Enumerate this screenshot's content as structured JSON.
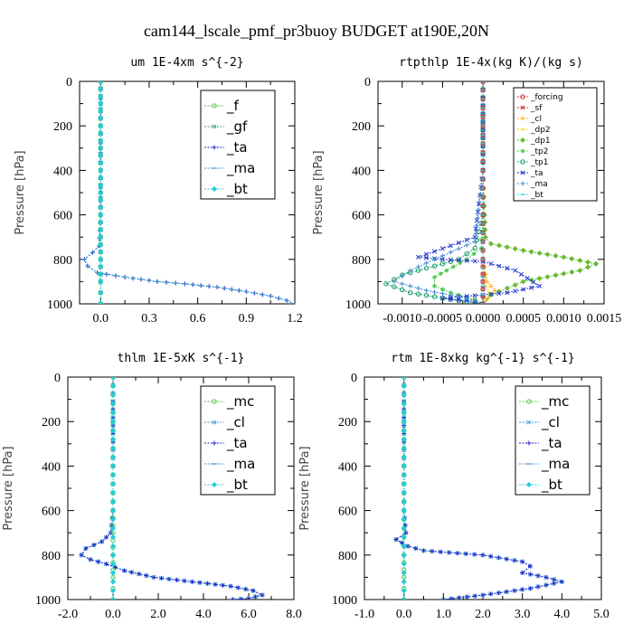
{
  "figure": {
    "title": "cam144_lscale_pmf_pr3buoy  BUDGET at190E,20N"
  },
  "chart_data": [
    {
      "type": "line",
      "title": "um   1E-4xm s^{-2}",
      "ylabel": "Pressure [hPa]",
      "ylim": [
        1000,
        0
      ],
      "xlim": [
        -0.13,
        1.2
      ],
      "xticks": [
        0,
        0.3,
        0.6,
        0.9,
        1.2
      ],
      "xtick_labels": [
        "0.0",
        "0.3",
        "0.6",
        "0.9",
        "1.2"
      ],
      "yticks": [
        0,
        200,
        400,
        600,
        800,
        1000
      ],
      "legend": "top-right",
      "series": [
        {
          "name": "_f",
          "color": "#55cc44",
          "x": [
            0,
            0,
            0,
            0,
            0,
            0,
            0,
            0,
            0,
            0,
            0,
            0
          ],
          "y": [
            0,
            100,
            200,
            300,
            400,
            500,
            600,
            700,
            800,
            900,
            950,
            1000
          ]
        },
        {
          "name": "_gf",
          "color": "#339966",
          "x": [
            0,
            0,
            0,
            0,
            0,
            0,
            0,
            0,
            0,
            0,
            0,
            0
          ],
          "y": [
            0,
            100,
            200,
            300,
            400,
            500,
            600,
            700,
            800,
            900,
            950,
            1000
          ]
        },
        {
          "name": "_ta",
          "color": "#2222cc",
          "x": [
            0,
            0,
            0,
            0,
            -0.01,
            -0.05,
            -0.1,
            -0.08,
            -0.02,
            0.15,
            0.35,
            0.52,
            0.72,
            0.9,
            1.05,
            1.15,
            1.2
          ],
          "y": [
            0,
            200,
            400,
            600,
            740,
            770,
            800,
            830,
            860,
            880,
            900,
            910,
            925,
            945,
            965,
            985,
            1000
          ]
        },
        {
          "name": "_ma",
          "color": "#3399cc",
          "x": [
            0,
            0,
            0,
            0,
            -0.01,
            -0.05,
            -0.1,
            -0.08,
            -0.02,
            0.15,
            0.35,
            0.52,
            0.72,
            0.9,
            1.05,
            1.15,
            1.2
          ],
          "y": [
            0,
            200,
            400,
            600,
            740,
            770,
            800,
            830,
            860,
            880,
            900,
            910,
            925,
            945,
            965,
            985,
            1000
          ]
        },
        {
          "name": "_bt",
          "color": "#22ccdd",
          "x": [
            0,
            0,
            0,
            0,
            0,
            0,
            0,
            0,
            0,
            0,
            0,
            0
          ],
          "y": [
            0,
            100,
            200,
            300,
            400,
            500,
            600,
            700,
            800,
            900,
            950,
            1000
          ]
        }
      ]
    },
    {
      "type": "line",
      "title": "rtpthlp   1E-4x(kg K)/(kg s)",
      "ylabel": "Pressure [hPa]",
      "ylim": [
        1000,
        0
      ],
      "xlim": [
        -0.0013,
        0.0015
      ],
      "xticks": [
        -0.001,
        -0.0005,
        0,
        0.0005,
        0.001,
        0.0015
      ],
      "xtick_labels": [
        "-0.0010",
        "-0.0005",
        "0.0000",
        "0.0005",
        "0.0010",
        "0.0015"
      ],
      "yticks": [
        0,
        200,
        400,
        600,
        800,
        1000
      ],
      "legend": "top-right",
      "series": [
        {
          "name": "_forcing",
          "color": "#dd2222",
          "x": [
            0,
            0,
            0,
            0,
            0,
            0,
            0
          ],
          "y": [
            0,
            200,
            400,
            600,
            800,
            900,
            1000
          ]
        },
        {
          "name": "_sf",
          "color": "#cc3333",
          "x": [
            0,
            0,
            0,
            0,
            0,
            0,
            0
          ],
          "y": [
            0,
            200,
            400,
            600,
            800,
            900,
            1000
          ]
        },
        {
          "name": "_cl",
          "color": "#ffaa00",
          "x": [
            0,
            0,
            0,
            0,
            0,
            5e-05,
            0.0001,
            0.00015,
            0.0001,
            5e-05,
            0
          ],
          "y": [
            0,
            200,
            400,
            600,
            800,
            900,
            920,
            940,
            960,
            980,
            1000
          ]
        },
        {
          "name": "_dp2",
          "color": "#eecc00",
          "x": [
            0,
            0,
            0,
            0,
            0,
            3e-05,
            8e-05,
            5e-05,
            0
          ],
          "y": [
            0,
            200,
            400,
            600,
            800,
            920,
            950,
            975,
            1000
          ]
        },
        {
          "name": "_dp1",
          "color": "#66bb33",
          "x": [
            0,
            0,
            2e-05,
            3e-05,
            0.0001,
            0.0005,
            0.001,
            0.0014,
            0.0012,
            0.0005,
            0.0001,
            0
          ],
          "y": [
            0,
            400,
            600,
            700,
            730,
            760,
            790,
            820,
            850,
            900,
            960,
            1000
          ]
        },
        {
          "name": "_tp2",
          "color": "#44cc44",
          "x": [
            0,
            0,
            0,
            -2e-05,
            -0.0002,
            -0.00045,
            -0.0006,
            -0.0006,
            -0.0004,
            -0.0001,
            0
          ],
          "y": [
            0,
            400,
            600,
            750,
            800,
            850,
            880,
            920,
            950,
            980,
            1000
          ]
        },
        {
          "name": "_tp1",
          "color": "#119966",
          "x": [
            0,
            0,
            0,
            -0.0001,
            -0.0003,
            -0.0007,
            -0.001,
            -0.0012,
            -0.0009,
            -0.0004,
            0
          ],
          "y": [
            0,
            400,
            600,
            750,
            800,
            840,
            870,
            910,
            950,
            980,
            1000
          ]
        },
        {
          "name": "_ta",
          "color": "#2233cc",
          "x": [
            0,
            0,
            -0.0001,
            -0.0008,
            -0.0005,
            0,
            0.0004,
            0.0007,
            0.0003,
            -0.0005,
            -0.0001,
            0
          ],
          "y": [
            0,
            400,
            700,
            790,
            800,
            810,
            850,
            920,
            950,
            975,
            990,
            1000
          ]
        },
        {
          "name": "_ma",
          "color": "#4488cc",
          "x": [
            0,
            0,
            -0.0001,
            -0.0006,
            -0.0009,
            -0.0011,
            -0.0007,
            -0.0002,
            0
          ],
          "y": [
            0,
            400,
            720,
            800,
            850,
            900,
            940,
            975,
            1000
          ]
        },
        {
          "name": "_bt",
          "color": "#22ccdd",
          "x": [
            0,
            0,
            0,
            0,
            0,
            0
          ],
          "y": [
            0,
            200,
            400,
            600,
            800,
            1000
          ]
        }
      ]
    },
    {
      "type": "line",
      "title": "thlm   1E-5xK s^{-1}",
      "ylabel": "Pressure [hPa]",
      "ylim": [
        1000,
        0
      ],
      "xlim": [
        -2.0,
        8.0
      ],
      "xticks": [
        -2,
        0,
        2,
        4,
        6,
        8
      ],
      "xtick_labels": [
        "-2.0",
        "0.0",
        "2.0",
        "4.0",
        "6.0",
        "8.0"
      ],
      "yticks": [
        0,
        200,
        400,
        600,
        800,
        1000
      ],
      "legend": "top-right",
      "series": [
        {
          "name": "_mc",
          "color": "#55cc44",
          "x": [
            0,
            0,
            0,
            0,
            0,
            0,
            0,
            0,
            0
          ],
          "y": [
            0,
            200,
            400,
            600,
            700,
            800,
            900,
            950,
            1000
          ]
        },
        {
          "name": "_cl",
          "color": "#3399cc",
          "x": [
            0,
            0,
            0,
            -0.1,
            -0.5,
            -1.2,
            -1.4,
            -1.0,
            -0.3,
            0.5,
            1.8,
            3.5,
            5.2,
            6.2,
            6.6,
            6.0,
            5.3
          ],
          "y": [
            0,
            400,
            600,
            700,
            740,
            770,
            800,
            820,
            840,
            870,
            900,
            920,
            940,
            960,
            980,
            995,
            1000
          ]
        },
        {
          "name": "_ta",
          "color": "#2222cc",
          "x": [
            0,
            0,
            0,
            -0.1,
            -0.5,
            -1.2,
            -1.4,
            -1.0,
            -0.3,
            0.5,
            1.8,
            3.5,
            5.2,
            6.2,
            6.6,
            6.0,
            5.3
          ],
          "y": [
            0,
            400,
            600,
            700,
            740,
            770,
            800,
            820,
            840,
            870,
            900,
            920,
            940,
            960,
            980,
            995,
            1000
          ]
        },
        {
          "name": "_ma",
          "color": "#4488cc",
          "x": [
            0,
            0,
            0,
            0,
            0,
            0
          ],
          "y": [
            0,
            200,
            400,
            600,
            800,
            1000
          ]
        },
        {
          "name": "_bt",
          "color": "#22ccdd",
          "x": [
            0,
            0,
            0,
            0,
            0,
            0
          ],
          "y": [
            0,
            200,
            400,
            600,
            800,
            1000
          ]
        }
      ]
    },
    {
      "type": "line",
      "title": "rtm   1E-8xkg kg^{-1} s^{-1}",
      "ylabel": "Pressure [hPa]",
      "ylim": [
        1000,
        0
      ],
      "xlim": [
        -1.0,
        5.0
      ],
      "xticks": [
        -1,
        0,
        1,
        2,
        3,
        4,
        5
      ],
      "xtick_labels": [
        "-1.0",
        "0.0",
        "1.0",
        "2.0",
        "3.0",
        "4.0",
        "5.0"
      ],
      "yticks": [
        0,
        200,
        400,
        600,
        800,
        1000
      ],
      "legend": "top-right",
      "series": [
        {
          "name": "_mc",
          "color": "#55cc44",
          "x": [
            0,
            0,
            0,
            0,
            0,
            0,
            0,
            0
          ],
          "y": [
            0,
            200,
            400,
            600,
            800,
            900,
            950,
            1000
          ]
        },
        {
          "name": "_cl",
          "color": "#3399cc",
          "x": [
            0,
            0,
            0,
            0.05,
            -0.2,
            0.1,
            0.5,
            2.0,
            3.0,
            3.2,
            3.0,
            3.6,
            4.0,
            3.2,
            2.0,
            1.0
          ],
          "y": [
            0,
            400,
            600,
            700,
            730,
            760,
            780,
            800,
            830,
            850,
            880,
            900,
            920,
            950,
            980,
            1000
          ]
        },
        {
          "name": "_ta",
          "color": "#2222cc",
          "x": [
            0,
            0,
            0,
            0.05,
            -0.2,
            0.1,
            0.5,
            2.0,
            3.0,
            3.2,
            3.0,
            3.6,
            4.0,
            3.2,
            2.0,
            1.0
          ],
          "y": [
            0,
            400,
            600,
            700,
            730,
            760,
            780,
            800,
            830,
            850,
            880,
            900,
            920,
            950,
            980,
            1000
          ]
        },
        {
          "name": "_ma",
          "color": "#4488cc",
          "x": [
            0,
            0,
            0,
            0,
            0,
            0
          ],
          "y": [
            0,
            200,
            400,
            600,
            800,
            1000
          ]
        },
        {
          "name": "_bt",
          "color": "#22ccdd",
          "x": [
            0,
            0,
            0,
            0,
            0,
            0
          ],
          "y": [
            0,
            200,
            400,
            600,
            800,
            1000
          ]
        }
      ]
    }
  ]
}
